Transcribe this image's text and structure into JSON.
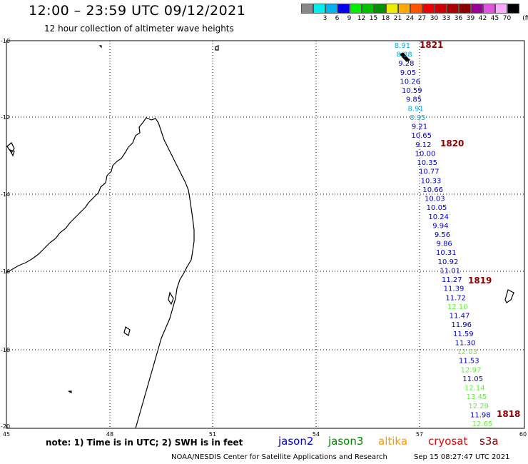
{
  "header": {
    "title": "12:00 – 23:59 UTC 09/12/2021",
    "subtitle": "12 hour collection of altimeter wave heights"
  },
  "legend": {
    "unit": "(ft)",
    "swatches": [
      {
        "label": "",
        "color": "#888888"
      },
      {
        "label": "3",
        "color": "#00eeee"
      },
      {
        "label": "6",
        "color": "#00b2ee"
      },
      {
        "label": "9",
        "color": "#0000ee"
      },
      {
        "label": "12",
        "color": "#00ee00"
      },
      {
        "label": "15",
        "color": "#00c000"
      },
      {
        "label": "18",
        "color": "#009000"
      },
      {
        "label": "21",
        "color": "#eeee00"
      },
      {
        "label": "24",
        "color": "#ffaa00"
      },
      {
        "label": "27",
        "color": "#ff5500"
      },
      {
        "label": "30",
        "color": "#ee0000"
      },
      {
        "label": "33",
        "color": "#cc0000"
      },
      {
        "label": "36",
        "color": "#aa0000"
      },
      {
        "label": "39",
        "color": "#880000"
      },
      {
        "label": "42",
        "color": "#990099"
      },
      {
        "label": "45",
        "color": "#dd55dd"
      },
      {
        "label": "70",
        "color": "#ffaaff"
      },
      {
        "label": "",
        "color": "#000000"
      }
    ]
  },
  "axes": {
    "lat_ticks": [
      "-10",
      "-12",
      "-14",
      "-16",
      "-18",
      "-20"
    ],
    "lon_ticks": [
      "45",
      "48",
      "51",
      "54",
      "57",
      "60"
    ]
  },
  "passes": [
    "1821",
    "1820",
    "1819",
    "1818"
  ],
  "wave_heights": [
    {
      "value": "8.91",
      "color": "#00b2ee"
    },
    {
      "value": "8.38",
      "color": "#00b2ee"
    },
    {
      "value": "9.28",
      "color": "#0000cd"
    },
    {
      "value": "9.05",
      "color": "#0000cd"
    },
    {
      "value": "10.26",
      "color": "#0000cd"
    },
    {
      "value": "10.59",
      "color": "#0000cd"
    },
    {
      "value": "9.85",
      "color": "#0000cd"
    },
    {
      "value": "8.91",
      "color": "#00b2ee"
    },
    {
      "value": "8.35",
      "color": "#00b2ee"
    },
    {
      "value": "9.21",
      "color": "#0000cd"
    },
    {
      "value": "10.65",
      "color": "#0000cd"
    },
    {
      "value": "9.12",
      "color": "#0000cd"
    },
    {
      "value": "10.00",
      "color": "#0000cd"
    },
    {
      "value": "10.35",
      "color": "#0000cd"
    },
    {
      "value": "10.77",
      "color": "#0000cd"
    },
    {
      "value": "10.33",
      "color": "#0000cd"
    },
    {
      "value": "10.66",
      "color": "#0000cd"
    },
    {
      "value": "10.03",
      "color": "#0000cd"
    },
    {
      "value": "10.05",
      "color": "#0000cd"
    },
    {
      "value": "10.24",
      "color": "#0000cd"
    },
    {
      "value": "9.94",
      "color": "#0000cd"
    },
    {
      "value": "9.56",
      "color": "#0000cd"
    },
    {
      "value": "9.86",
      "color": "#0000cd"
    },
    {
      "value": "10.31",
      "color": "#0000cd"
    },
    {
      "value": "10.92",
      "color": "#0000cd"
    },
    {
      "value": "11.01",
      "color": "#0000cd"
    },
    {
      "value": "11.27",
      "color": "#0000cd"
    },
    {
      "value": "11.39",
      "color": "#0000cd"
    },
    {
      "value": "11.72",
      "color": "#0000cd"
    },
    {
      "value": "12.10",
      "color": "#66ee44"
    },
    {
      "value": "11.47",
      "color": "#0000cd"
    },
    {
      "value": "11.96",
      "color": "#0000cd"
    },
    {
      "value": "11.59",
      "color": "#0000cd"
    },
    {
      "value": "11.30",
      "color": "#0000cd"
    },
    {
      "value": "12.03",
      "color": "#66ee44"
    },
    {
      "value": "11.53",
      "color": "#0000cd"
    },
    {
      "value": "12.97",
      "color": "#66ee44"
    },
    {
      "value": "11.05",
      "color": "#0000cd"
    },
    {
      "value": "12.14",
      "color": "#66ee44"
    },
    {
      "value": "13.45",
      "color": "#66ee44"
    },
    {
      "value": "12.29",
      "color": "#66ee44"
    },
    {
      "value": "11.98",
      "color": "#0000cd"
    },
    {
      "value": "12.65",
      "color": "#66ee44"
    }
  ],
  "footer": {
    "note": "note:  1) Time is in UTC;  2) SWH is in feet",
    "satellites": [
      {
        "name": "jason2",
        "color": "#0000cc"
      },
      {
        "name": "jason3",
        "color": "#008800"
      },
      {
        "name": "altika",
        "color": "#ff9900"
      },
      {
        "name": "cryosat",
        "color": "#ee0000"
      },
      {
        "name": "s3a",
        "color": "#880000"
      }
    ],
    "credit": "NOAA/NESDIS Center for Satellite Applications and Research",
    "timestamp": "Sep 15 08:27:47 UTC 2021"
  }
}
